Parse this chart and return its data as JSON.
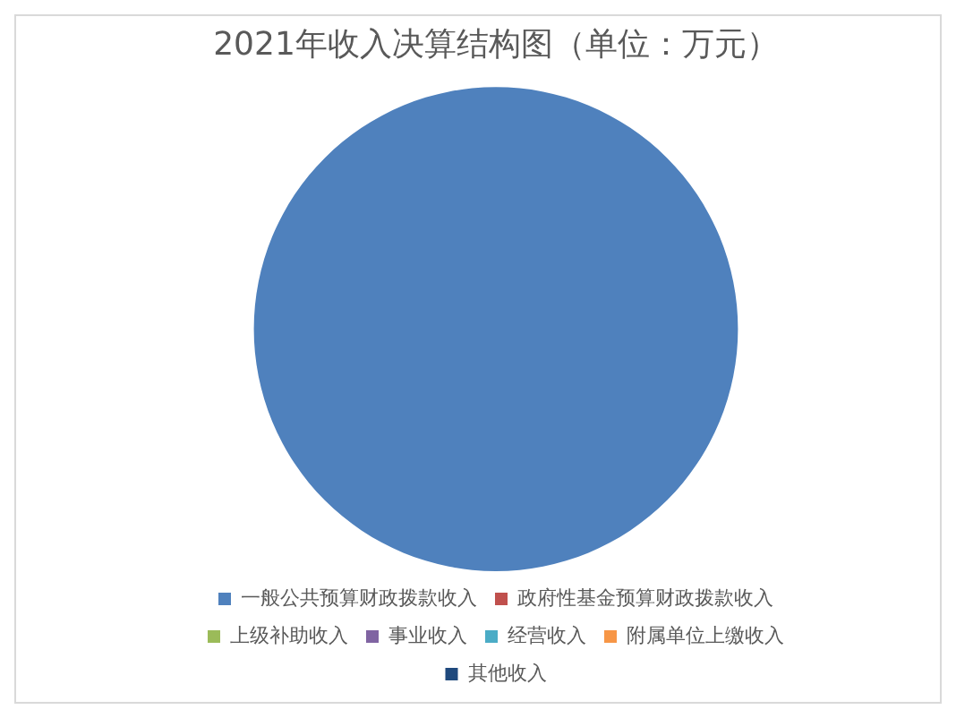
{
  "chart_data": {
    "type": "pie",
    "title": "2021年收入决算结构图（单位：万元）",
    "categories": [
      "一般公共预算财政拨款收入",
      "政府性基金预算财政拨款收入",
      "上级补助收入",
      "事业收入",
      "经营收入",
      "附属单位上缴收入",
      "其他收入"
    ],
    "values": [
      100,
      0,
      0,
      0,
      0,
      0,
      0
    ],
    "colors": [
      "#4f81bd",
      "#c0504d",
      "#9bbb59",
      "#8064a2",
      "#4bacc6",
      "#f79646",
      "#1f497d"
    ],
    "legend": "bottom"
  }
}
